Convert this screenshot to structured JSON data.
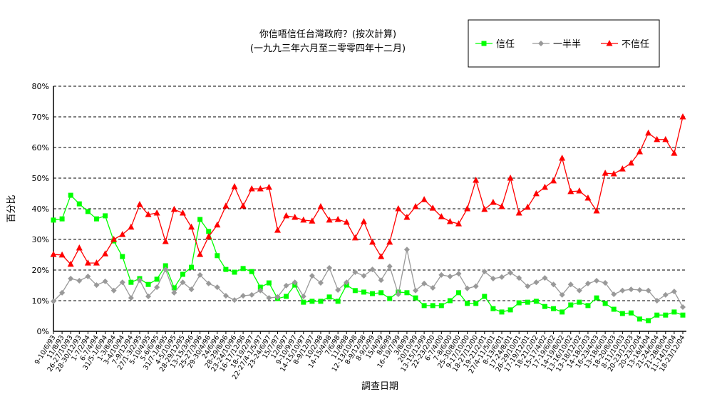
{
  "chart_data": {
    "type": "line",
    "title": "你信唔信任台灣政府？(按次計算)",
    "subtitle": "(一九九三年六月至二零零四年十二月)",
    "xlabel": "調查日期",
    "ylabel": "百分比",
    "ylim": [
      0,
      80
    ],
    "yticks": [
      "0%",
      "10%",
      "20%",
      "30%",
      "40%",
      "50%",
      "60%",
      "70%",
      "80%"
    ],
    "grid": true,
    "legend_position": "top-right",
    "categories": [
      "9-10/6/93",
      "11/8/93",
      "26-27/10/93",
      "28-30/12/93",
      "1-7/2/94",
      "6-7/4/94",
      "31/5-1/6/94",
      "1-3/8/94",
      "3-4/10/94",
      "7-9/12/94",
      "27/1-3/2/95",
      "5-10/4/95",
      "5-6/6/95",
      "31/7-1/8/95",
      "4-5/10/95",
      "28-29/12/95",
      "13-15/3/96",
      "25-27/3/96",
      "29-30/4/96",
      "24/6/96",
      "28-29/8/96",
      "23-24/10/96",
      "16-17/12/96",
      "18-19/2/97",
      "22-27/4-1/5/97",
      "23-24/6/97",
      "15/7/97",
      "12/8/97",
      "9-10/9/97",
      "14-15/10/97",
      "8-9/12/97",
      "10/2/98",
      "14-15/4/98",
      "7/6/98",
      "11/8/98",
      "12-13/10/98",
      "8-9/12/98",
      "8-9/2/99",
      "15/4/99",
      "8/6/99",
      "16-19/7/99",
      "3/8/99",
      "20/10/99",
      "13-15/12/99",
      "22-23/2/00",
      "6-7/4/00",
      "7-8/6/00",
      "25-30/8/00",
      "9-17/10/00",
      "18-27/12/00",
      "19-21/2/01",
      "27/4-11/5/01",
      "8-13/6/01",
      "17-24/8/01",
      "26-29/10/01",
      "17-19/12/01",
      "18-21/2/02",
      "15-17/4/02",
      "17-19/6/02",
      "14-19/8/02",
      "13-16/10/02",
      "13-18/12/02",
      "14-18/2/03",
      "16-23/4/03",
      "13-18/6/03",
      "18-20/8/03",
      "8-11/10/03",
      "20-23/12/03",
      "20-23/2/04",
      "13-16/4/04",
      "21-24/6/04",
      "21-28/8/04",
      "11-14/10/04",
      "18-23/12/04"
    ],
    "series": [
      {
        "name": "信任",
        "color": "#00ff00",
        "marker": "square",
        "values": [
          36.3,
          36.7,
          44.4,
          41.6,
          39.1,
          36.7,
          37.7,
          29.5,
          24.4,
          16.0,
          17.2,
          15.3,
          17.0,
          21.4,
          14.2,
          18.6,
          20.9,
          36.5,
          32.6,
          24.7,
          20.2,
          19.3,
          20.5,
          19.5,
          14.4,
          15.8,
          10.7,
          11.4,
          15.1,
          9.5,
          9.8,
          9.8,
          11.2,
          9.8,
          15.1,
          13.3,
          12.8,
          12.3,
          12.6,
          10.7,
          12.8,
          12.6,
          10.9,
          8.4,
          8.4,
          8.4,
          10.0,
          12.6,
          9.1,
          9.1,
          11.4,
          7.4,
          6.3,
          7.0,
          9.3,
          9.5,
          9.8,
          8.1,
          7.4,
          6.3,
          8.6,
          9.5,
          8.4,
          10.9,
          9.1,
          7.2,
          5.8,
          6.0,
          4.0,
          3.5,
          5.3,
          5.3,
          6.3,
          5.3
        ]
      },
      {
        "name": "一半半",
        "color": "#999999",
        "marker": "diamond",
        "values": [
          9.8,
          12.6,
          17.2,
          16.5,
          17.9,
          15.1,
          16.3,
          13.3,
          16.0,
          10.9,
          16.7,
          11.4,
          14.4,
          20.2,
          12.6,
          16.0,
          13.7,
          18.4,
          15.6,
          14.4,
          11.6,
          10.2,
          11.6,
          11.9,
          13.3,
          10.9,
          11.2,
          14.9,
          16.0,
          11.4,
          18.1,
          15.8,
          20.7,
          13.5,
          16.0,
          19.3,
          18.1,
          20.2,
          16.7,
          21.2,
          12.1,
          26.7,
          13.3,
          15.6,
          14.2,
          18.4,
          17.9,
          18.8,
          14.0,
          14.7,
          19.5,
          17.2,
          17.7,
          19.1,
          17.4,
          14.7,
          16.0,
          17.4,
          15.3,
          11.9,
          15.3,
          13.3,
          15.6,
          16.5,
          15.8,
          12.1,
          13.3,
          13.7,
          13.5,
          13.3,
          10.0,
          11.9,
          13.0,
          7.9
        ]
      },
      {
        "name": "不信任",
        "color": "#ff0000",
        "marker": "triangle",
        "values": [
          25.1,
          24.9,
          21.9,
          27.2,
          22.3,
          22.3,
          25.3,
          30.0,
          31.6,
          34.0,
          41.4,
          38.1,
          38.6,
          29.3,
          39.8,
          38.6,
          34.0,
          25.1,
          30.9,
          34.7,
          40.9,
          47.2,
          40.9,
          46.5,
          46.5,
          47.0,
          33.0,
          37.7,
          37.2,
          36.3,
          36.0,
          40.7,
          36.3,
          36.5,
          35.6,
          30.5,
          35.8,
          29.1,
          24.4,
          29.1,
          40.0,
          37.2,
          40.7,
          43.0,
          40.2,
          37.4,
          35.8,
          35.1,
          40.0,
          49.3,
          39.8,
          42.1,
          40.7,
          50.0,
          38.6,
          40.5,
          44.9,
          47.0,
          49.1,
          56.5,
          45.6,
          45.8,
          43.5,
          39.3,
          51.6,
          51.4,
          53.0,
          54.9,
          58.6,
          64.7,
          62.6,
          62.6,
          58.1,
          70.0
        ]
      }
    ]
  }
}
